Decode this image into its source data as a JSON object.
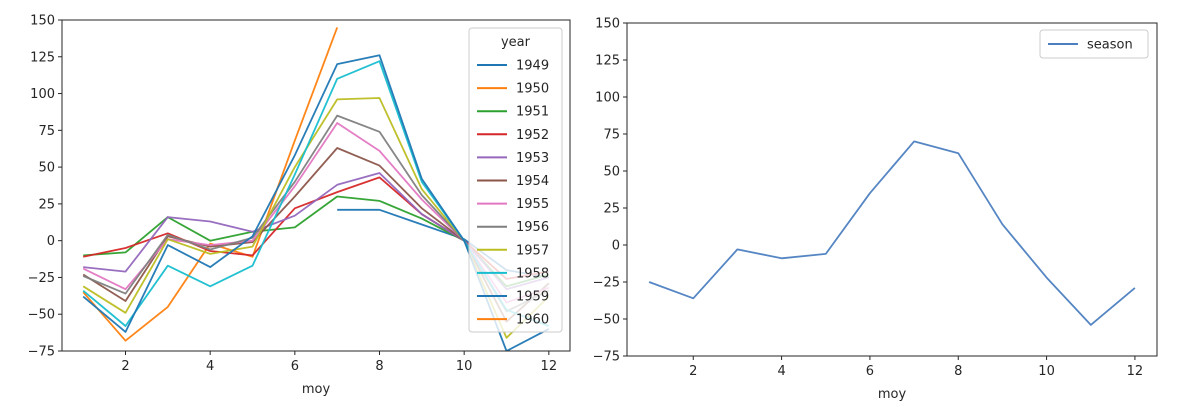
{
  "chart_data": [
    {
      "type": "line",
      "title": "",
      "xlabel": "moy",
      "ylabel": "",
      "xlim": [
        0.5,
        12.5
      ],
      "ylim": [
        -75,
        150
      ],
      "xticks": [
        2,
        4,
        6,
        8,
        10,
        12
      ],
      "yticks": [
        -75,
        -50,
        -25,
        0,
        25,
        50,
        75,
        100,
        125,
        150
      ],
      "grid": false,
      "legend": {
        "title": "year",
        "position": "upper-right"
      },
      "series": [
        {
          "name": "1949",
          "color": "#1f77b4",
          "x": [
            7,
            8,
            9,
            10,
            11,
            12
          ],
          "y": [
            21,
            21,
            11,
            1,
            -20,
            -25
          ]
        },
        {
          "name": "1950",
          "color": "#ff7f0e",
          "x": [
            1,
            2,
            3,
            4,
            5,
            6,
            7
          ],
          "y": [
            -35,
            -68,
            -45,
            -2,
            -11,
            68,
            145
          ]
        },
        {
          "name": "1951",
          "color": "#2ca02c",
          "x": [
            1,
            2,
            3,
            4,
            5,
            6,
            7,
            8,
            9,
            10,
            11,
            12
          ],
          "y": [
            -10,
            -8,
            16,
            0,
            6,
            9,
            30,
            27,
            15,
            0,
            -31,
            -23
          ]
        },
        {
          "name": "1952",
          "color": "#d62728",
          "x": [
            1,
            2,
            3,
            4,
            5,
            6,
            7,
            8,
            9,
            10,
            11,
            12
          ],
          "y": [
            -11,
            -5,
            5,
            -7,
            -10,
            22,
            33,
            43,
            18,
            0,
            -26,
            -21
          ]
        },
        {
          "name": "1953",
          "color": "#9467bd",
          "x": [
            1,
            2,
            3,
            4,
            5,
            6,
            7,
            8,
            9,
            10,
            11,
            12
          ],
          "y": [
            -18,
            -21,
            16,
            13,
            6,
            17,
            38,
            46,
            18,
            0,
            -33,
            -25
          ]
        },
        {
          "name": "1954",
          "color": "#8c564b",
          "x": [
            1,
            2,
            3,
            4,
            5,
            6,
            7,
            8,
            9,
            10,
            11,
            12
          ],
          "y": [
            -23,
            -41,
            3,
            -4,
            -1,
            30,
            63,
            51,
            22,
            0,
            -55,
            -29
          ]
        },
        {
          "name": "1955",
          "color": "#e377c2",
          "x": [
            1,
            2,
            3,
            4,
            5,
            6,
            7,
            8,
            9,
            10,
            11,
            12
          ],
          "y": [
            -19,
            -33,
            1,
            -3,
            0,
            37,
            80,
            61,
            28,
            0,
            -42,
            -32
          ]
        },
        {
          "name": "1956",
          "color": "#7f7f7f",
          "x": [
            1,
            2,
            3,
            4,
            5,
            6,
            7,
            8,
            9,
            10,
            11,
            12
          ],
          "y": [
            -24,
            -36,
            4,
            -6,
            2,
            40,
            85,
            74,
            31,
            0,
            -48,
            -34
          ]
        },
        {
          "name": "1957",
          "color": "#bcbd22",
          "x": [
            1,
            2,
            3,
            4,
            5,
            6,
            7,
            8,
            9,
            10,
            11,
            12
          ],
          "y": [
            -31,
            -49,
            1,
            -9,
            -4,
            50,
            96,
            97,
            35,
            0,
            -66,
            -38
          ]
        },
        {
          "name": "1958",
          "color": "#17becf",
          "x": [
            1,
            2,
            3,
            4,
            5,
            6,
            7,
            8,
            9,
            10,
            11,
            12
          ],
          "y": [
            -34,
            -58,
            -17,
            -31,
            -17,
            45,
            110,
            122,
            40,
            0,
            -47,
            -58
          ]
        },
        {
          "name": "1959",
          "color": "#1f77b4",
          "x": [
            1,
            2,
            3,
            4,
            5,
            6,
            7,
            8,
            9,
            10,
            11,
            12
          ],
          "y": [
            -38,
            -62,
            -3,
            -18,
            3,
            58,
            120,
            126,
            42,
            0,
            -75,
            -60
          ]
        },
        {
          "name": "1960",
          "color": "#ff7f0e",
          "x": [],
          "y": []
        }
      ]
    },
    {
      "type": "line",
      "title": "",
      "xlabel": "moy",
      "ylabel": "",
      "xlim": [
        0.5,
        12.5
      ],
      "ylim": [
        -75,
        150
      ],
      "xticks": [
        2,
        4,
        6,
        8,
        10,
        12
      ],
      "yticks": [
        -75,
        -50,
        -25,
        0,
        25,
        50,
        75,
        100,
        125,
        150
      ],
      "grid": false,
      "legend": {
        "title": "",
        "position": "upper-right"
      },
      "series": [
        {
          "name": "season",
          "color": "#4c7fc0",
          "x": [
            1,
            2,
            3,
            4,
            5,
            6,
            7,
            8,
            9,
            10,
            11,
            12
          ],
          "y": [
            -25,
            -36,
            -3,
            -9,
            -6,
            35,
            70,
            62,
            14,
            -22,
            -54,
            -29
          ]
        }
      ]
    }
  ]
}
